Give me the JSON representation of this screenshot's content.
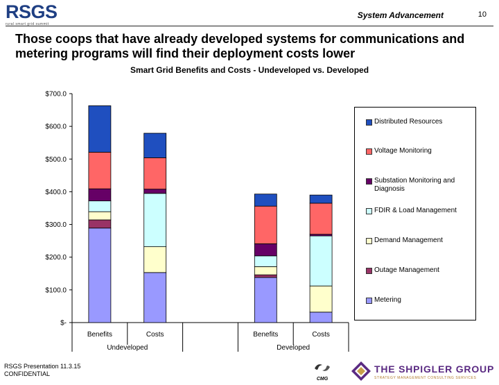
{
  "header": {
    "logo_text": "RSGS",
    "logo_subtitle": "rural smart grid summit",
    "section": "System Advancement",
    "page_number": "10"
  },
  "headline": "Those coops that have already developed systems for communications and metering programs will find their deployment costs lower",
  "chart_data": {
    "type": "bar",
    "stacked": true,
    "title": "Smart Grid Benefits and Costs - Undeveloped vs. Developed",
    "groups": [
      {
        "label": "Undeveloped",
        "categories": [
          "Benefits",
          "Costs"
        ]
      },
      {
        "label": "Developed",
        "categories": [
          "Benefits",
          "Costs"
        ]
      }
    ],
    "categories": [
      "Benefits",
      "Costs",
      "Benefits",
      "Costs"
    ],
    "ylim": [
      0,
      700
    ],
    "yticks": [
      0,
      100,
      200,
      300,
      400,
      500,
      600,
      700
    ],
    "ytick_labels": [
      "$-",
      "$100.0",
      "$200.0",
      "$300.0",
      "$400.0",
      "$500.0",
      "$600.0",
      "$700.0"
    ],
    "series": [
      {
        "name": "Metering",
        "color": "#9999ff",
        "values": [
          289,
          153,
          138,
          32
        ]
      },
      {
        "name": "Outage Management",
        "color": "#993366",
        "values": [
          25,
          0,
          8,
          0
        ]
      },
      {
        "name": "Demand Management",
        "color": "#ffffcc",
        "values": [
          25,
          79,
          25,
          80
        ]
      },
      {
        "name": "FDIR & Load Management",
        "color": "#ccffff",
        "values": [
          33,
          163,
          33,
          153
        ]
      },
      {
        "name": "Substation Monitoring and Diagnosis",
        "color": "#660066",
        "values": [
          37,
          13,
          37,
          5
        ]
      },
      {
        "name": "Voltage Monitoring",
        "color": "#ff6666",
        "values": [
          112,
          96,
          115,
          95
        ]
      },
      {
        "name": "Distributed Resources",
        "color": "#1f4fbf",
        "values": [
          142,
          75,
          37,
          25
        ]
      }
    ],
    "legend_position": "right",
    "legend_order": [
      "Distributed Resources",
      "Voltage Monitoring",
      "Substation Monitoring and Diagnosis",
      "FDIR & Load Management",
      "Demand Management",
      "Outage Management",
      "Metering"
    ]
  },
  "footer": {
    "line1": "RSGS Presentation 11.3.15",
    "line2": "CONFIDENTIAL"
  },
  "logos": {
    "cmg_text": "CMG",
    "shpigler_name": "THE SHPIGLER GROUP",
    "shpigler_tagline": "STRATEGY MANAGEMENT CONSULTING SERVICES"
  },
  "colors": {
    "logo_blue": "#1f3f83",
    "shpigler_purple": "#5a2a82"
  }
}
